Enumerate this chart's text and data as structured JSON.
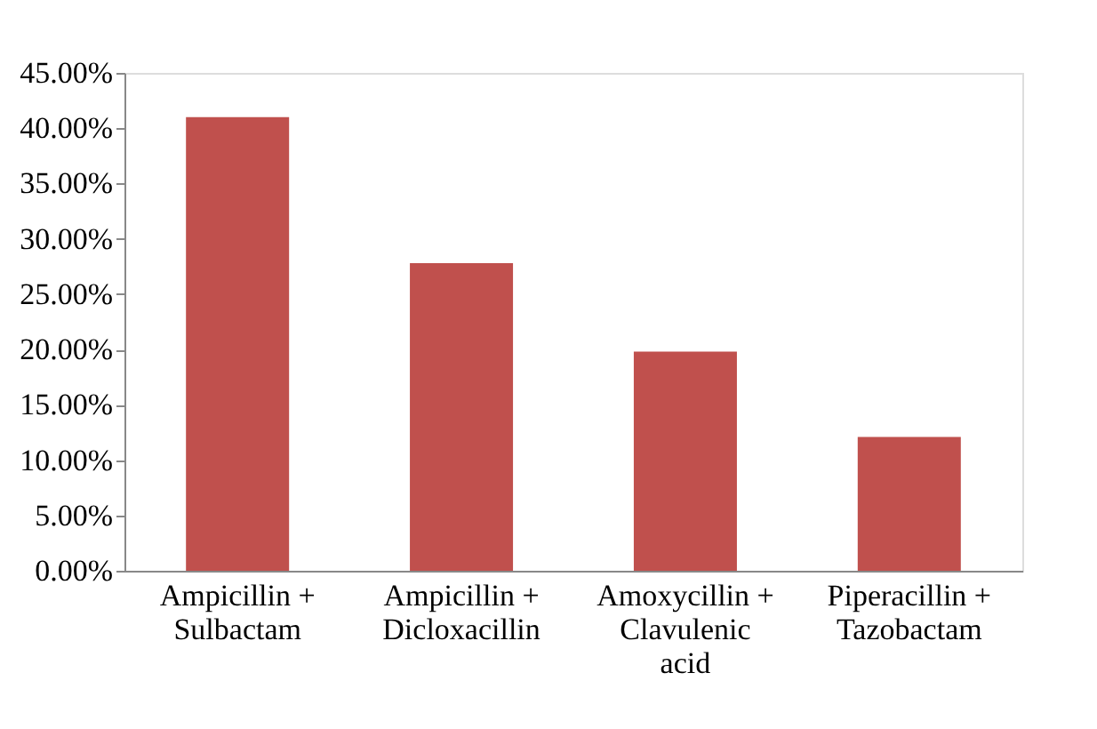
{
  "chart_data": {
    "type": "bar",
    "categories": [
      "Ampicillin + Sulbactam",
      "Ampicillin + Dicloxacillin",
      "Amoxycillin + Clavulenic acid",
      "Piperacillin + Tazobactam"
    ],
    "values": [
      41.0,
      27.8,
      19.8,
      12.1
    ],
    "color": "#c0504d",
    "ylim": [
      0,
      45
    ],
    "yticks": [
      {
        "value": 0,
        "label": "0.00%"
      },
      {
        "value": 5,
        "label": "5.00%"
      },
      {
        "value": 10,
        "label": "10.00%"
      },
      {
        "value": 15,
        "label": "15.00%"
      },
      {
        "value": 20,
        "label": "20.00%"
      },
      {
        "value": 25,
        "label": "25.00%"
      },
      {
        "value": 30,
        "label": "30.00%"
      },
      {
        "value": 35,
        "label": "35.00%"
      },
      {
        "value": 40,
        "label": "40.00%"
      },
      {
        "value": 45,
        "label": "45.00%"
      }
    ],
    "grid": false
  }
}
